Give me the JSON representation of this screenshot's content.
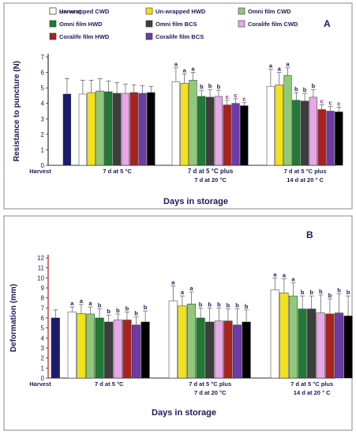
{
  "chart_data": [
    {
      "panel": "A",
      "type": "bar",
      "ylabel": "Resistance to puncture (N)",
      "xlabel": "Days in storage",
      "ylim": [
        0,
        7
      ],
      "yticks": [
        "0",
        "1",
        "2",
        "3",
        "4",
        "5",
        "6",
        "7"
      ],
      "groups": [
        {
          "label": [
            "Harvest"
          ],
          "values": [
            4.6
          ],
          "errors": [
            1.0
          ],
          "letters": [
            ""
          ]
        },
        {
          "label": [
            "7 d at 5 °C"
          ],
          "values": [
            4.6,
            4.7,
            4.8,
            4.75,
            4.65,
            4.65,
            4.7,
            4.65,
            4.7
          ],
          "errors": [
            0.9,
            0.8,
            0.8,
            0.7,
            0.7,
            0.6,
            0.5,
            0.5,
            0.4
          ],
          "letters": [
            "",
            "",
            "",
            "",
            "",
            "",
            "",
            "",
            ""
          ]
        },
        {
          "label": [
            "7 d at 5 °C plus",
            "7 d at 20 °C"
          ],
          "values": [
            5.4,
            5.3,
            5.5,
            4.45,
            4.4,
            4.45,
            3.9,
            4.0,
            3.85
          ],
          "errors": [
            0.9,
            0.6,
            0.5,
            0.4,
            0.5,
            0.4,
            0.3,
            0.3,
            0.2
          ],
          "letters": [
            "a",
            "a",
            "a",
            "b",
            "b",
            "b",
            "c",
            "c",
            "c"
          ]
        },
        {
          "label": [
            "7 d at 5 °C plus",
            "14 d at 20 ° C"
          ],
          "values": [
            5.1,
            5.2,
            5.8,
            4.2,
            4.15,
            4.4,
            3.6,
            3.5,
            3.45
          ],
          "errors": [
            1.1,
            0.8,
            0.5,
            0.5,
            0.5,
            0.5,
            0.3,
            0.3,
            0.3
          ],
          "letters": [
            "a",
            "a",
            "a",
            "b",
            "b",
            "b",
            "c",
            "c",
            "c"
          ]
        }
      ],
      "legend": [
        {
          "name": "Harvest",
          "color": "#1a1a6e"
        },
        {
          "name": "Un-wrapped CWD",
          "color": "#ffffff"
        },
        {
          "name": "Un-wrapped HWD",
          "color": "#f2e21b"
        },
        {
          "name": "Omni film CWD",
          "color": "#8fc97a"
        },
        {
          "name": "Omni film HWD",
          "color": "#1f7a35"
        },
        {
          "name": "Omni film BCS",
          "color": "#3d3d3d"
        },
        {
          "name": "Coralife film CWD",
          "color": "#e6a8e6"
        },
        {
          "name": "Coralife film HWD",
          "color": "#a8231f"
        },
        {
          "name": "Coralife film BCS",
          "color": "#6e3aa8"
        }
      ]
    },
    {
      "panel": "B",
      "type": "bar",
      "ylabel": "Deformation (mm)",
      "xlabel": "Days in storage",
      "ylim": [
        0,
        12
      ],
      "yticks": [
        "0",
        "1",
        "2",
        "3",
        "4",
        "5",
        "6",
        "7",
        "8",
        "9",
        "10",
        "11",
        "12"
      ],
      "groups": [
        {
          "label": [
            "Harvest"
          ],
          "values": [
            6.0
          ],
          "errors": [
            0.8
          ],
          "letters": [
            ""
          ]
        },
        {
          "label": [
            "7 d at 5 °C"
          ],
          "values": [
            6.6,
            6.45,
            6.4,
            6.0,
            5.6,
            5.8,
            5.8,
            5.3,
            5.6
          ],
          "errors": [
            0.5,
            0.9,
            0.7,
            0.9,
            0.7,
            0.6,
            0.8,
            0.8,
            1.1
          ],
          "letters": [
            "a",
            "a",
            "a",
            "b",
            "b",
            "b",
            "b",
            "b",
            "b"
          ]
        },
        {
          "label": [
            "7 d at 5 °C plus",
            "7 d at 20 °C"
          ],
          "values": [
            7.7,
            7.2,
            7.4,
            6.0,
            5.6,
            5.7,
            5.7,
            5.3,
            5.6
          ],
          "errors": [
            1.5,
            1.0,
            1.2,
            1.0,
            1.4,
            1.3,
            1.2,
            1.6,
            1.2
          ],
          "letters": [
            "a",
            "a",
            "a",
            "b",
            "b",
            "b",
            "b",
            "b",
            "b"
          ]
        },
        {
          "label": [
            "7 d at 5 °C plus",
            "14 d at 20 ° C"
          ],
          "values": [
            8.8,
            8.5,
            8.2,
            6.9,
            6.9,
            6.5,
            6.4,
            6.5,
            6.2
          ],
          "errors": [
            1.2,
            1.4,
            1.3,
            1.3,
            1.3,
            1.8,
            1.5,
            1.9,
            2.0
          ],
          "letters": [
            "a",
            "a",
            "a",
            "b",
            "b",
            "b",
            "b",
            "b",
            "b"
          ]
        }
      ]
    }
  ]
}
